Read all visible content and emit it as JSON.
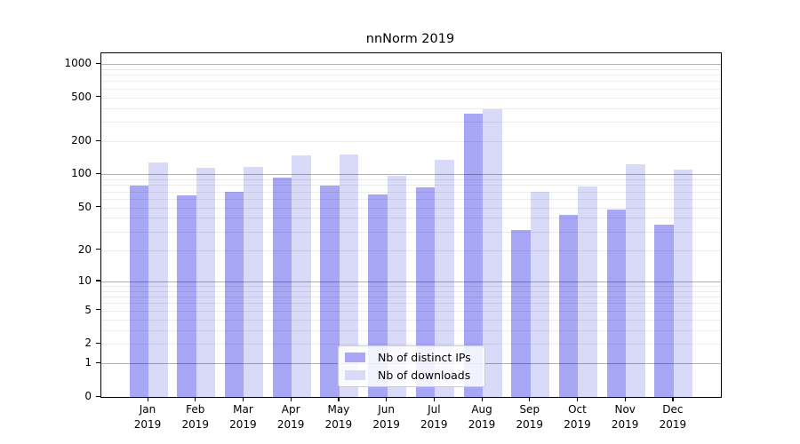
{
  "title": "nnNorm 2019",
  "colors": {
    "distinct_ips_bar": "#a7a7f5",
    "downloads_bar": "#d9d9f8",
    "major_gridline": "#b0b0b0",
    "minor_gridline": "#ebebeb",
    "axis": "#000000",
    "legend_border": "#cccccc"
  },
  "chart_data": {
    "type": "bar",
    "title": "nnNorm 2019",
    "categories": [
      {
        "month": "Jan",
        "year": "2019"
      },
      {
        "month": "Feb",
        "year": "2019"
      },
      {
        "month": "Mar",
        "year": "2019"
      },
      {
        "month": "Apr",
        "year": "2019"
      },
      {
        "month": "May",
        "year": "2019"
      },
      {
        "month": "Jun",
        "year": "2019"
      },
      {
        "month": "Jul",
        "year": "2019"
      },
      {
        "month": "Aug",
        "year": "2019"
      },
      {
        "month": "Sep",
        "year": "2019"
      },
      {
        "month": "Oct",
        "year": "2019"
      },
      {
        "month": "Nov",
        "year": "2019"
      },
      {
        "month": "Dec",
        "year": "2019"
      }
    ],
    "series": [
      {
        "name": "Nb of distinct IPs",
        "color": "#a7a7f5",
        "values": [
          79,
          65,
          70,
          93,
          79,
          66,
          77,
          357,
          31,
          43,
          48,
          35
        ]
      },
      {
        "name": "Nb of downloads",
        "color": "#d9d9f8",
        "values": [
          129,
          114,
          117,
          149,
          151,
          98,
          135,
          391,
          69,
          78,
          125,
          110
        ]
      }
    ],
    "yscale": "log1p",
    "yticks": [
      0,
      1,
      2,
      5,
      10,
      20,
      50,
      100,
      200,
      500,
      1000
    ],
    "ylim": [
      0,
      1250
    ],
    "grid": {
      "major": [
        1,
        10,
        100,
        1000
      ],
      "minor": [
        2,
        3,
        4,
        5,
        6,
        7,
        8,
        9,
        20,
        30,
        40,
        50,
        60,
        70,
        80,
        90,
        200,
        300,
        400,
        500,
        600,
        700,
        800,
        900
      ]
    },
    "legend_position": "lower-center",
    "grid_on": true
  }
}
